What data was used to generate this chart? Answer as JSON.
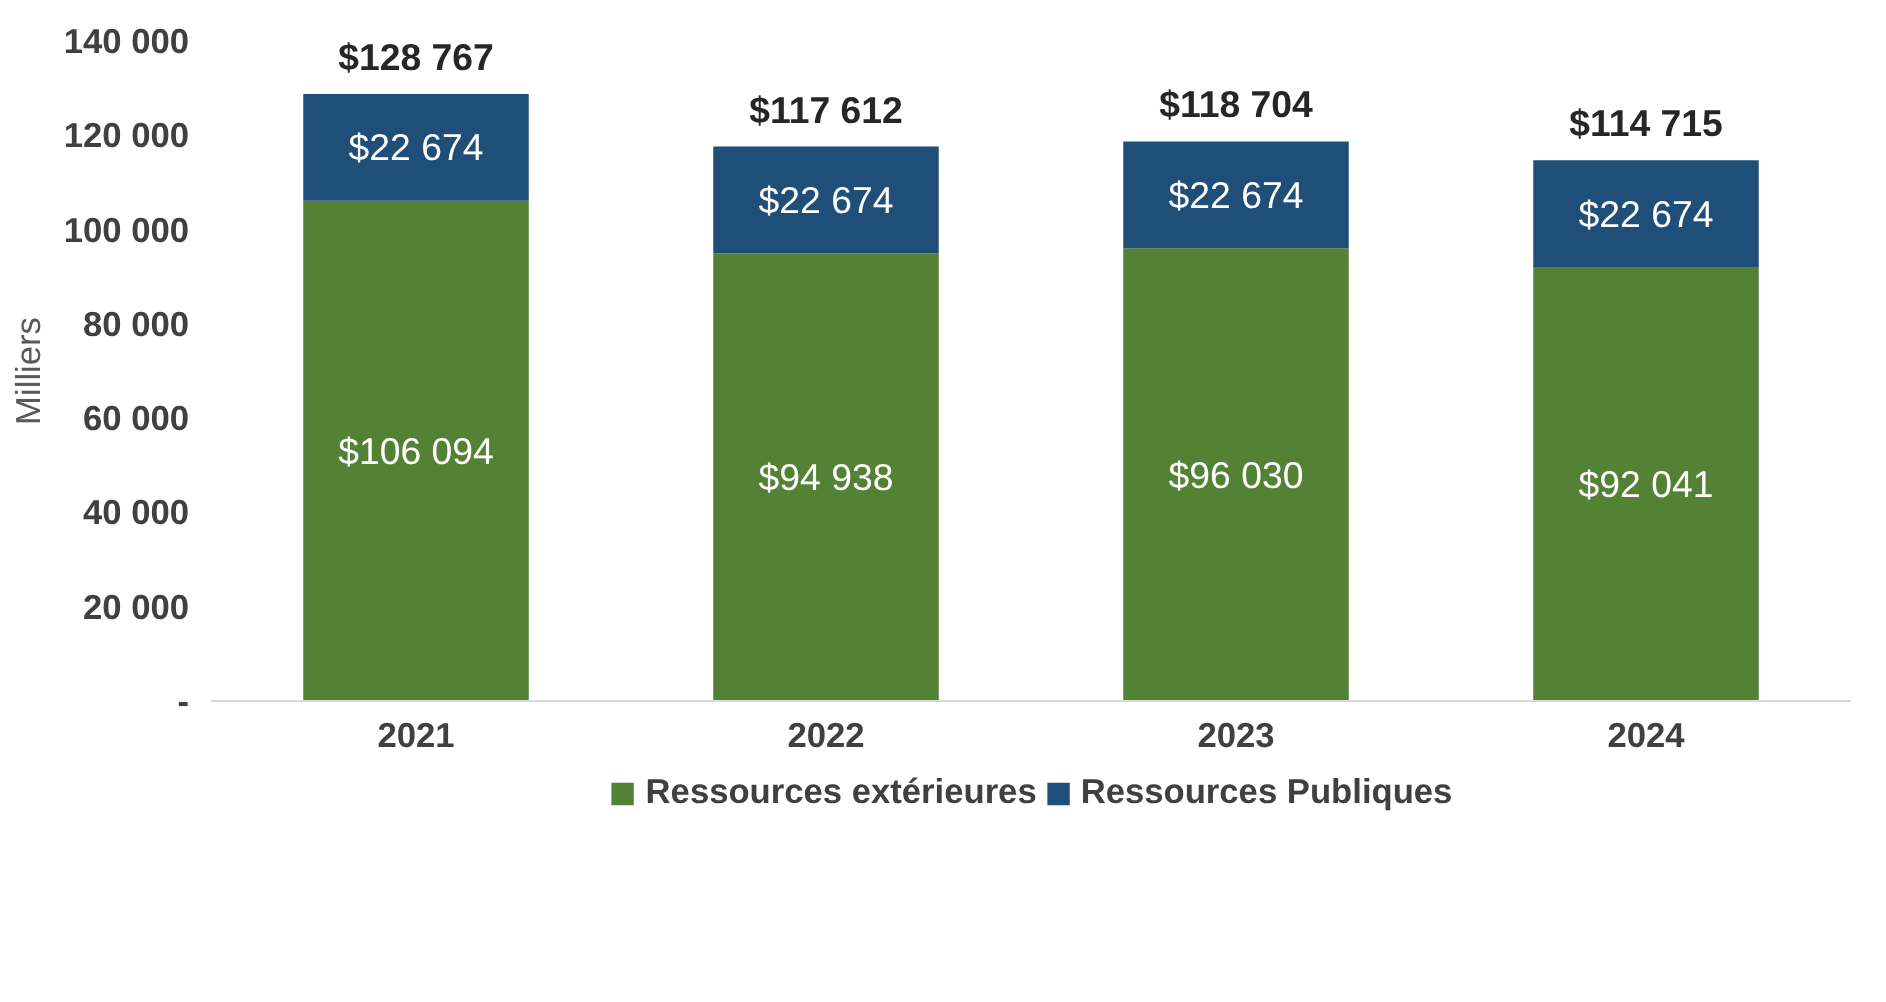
{
  "chart_data": {
    "type": "bar",
    "stacked": true,
    "ylabel": "Milliers",
    "categories": [
      "2021",
      "2022",
      "2023",
      "2024"
    ],
    "series": [
      {
        "name": "Ressources extérieures",
        "color": "#548235",
        "values": [
          106094,
          94938,
          96030,
          92041
        ],
        "value_labels": [
          "$106 094",
          "$94 938",
          "$96 030",
          "$92 041"
        ]
      },
      {
        "name": "Ressources Publiques",
        "color": "#1f4e79",
        "values": [
          22674,
          22674,
          22674,
          22674
        ],
        "value_labels": [
          "$22 674",
          "$22 674",
          "$22 674",
          "$22 674"
        ]
      }
    ],
    "totals": [
      "$128 767",
      "$117 612",
      "$118 704",
      "$114 715"
    ],
    "ylim": [
      0,
      140000
    ],
    "yticks": [
      {
        "value": 0,
        "label": "-"
      },
      {
        "value": 20000,
        "label": "20 000"
      },
      {
        "value": 40000,
        "label": "40 000"
      },
      {
        "value": 60000,
        "label": "60 000"
      },
      {
        "value": 80000,
        "label": "80 000"
      },
      {
        "value": 100000,
        "label": "100 000"
      },
      {
        "value": 120000,
        "label": "120 000"
      },
      {
        "value": 140000,
        "label": "140 000"
      }
    ],
    "grid": false,
    "legend": "bottom"
  }
}
